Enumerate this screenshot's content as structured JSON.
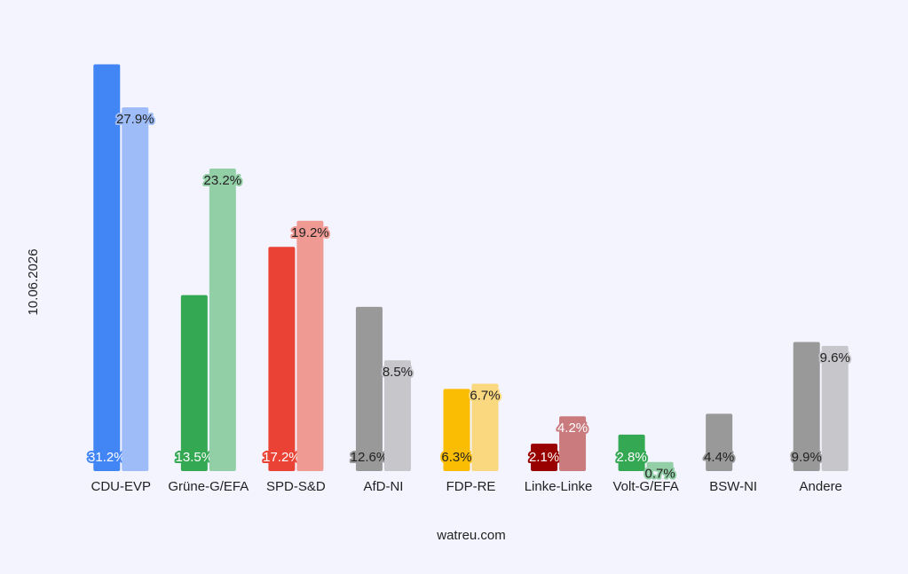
{
  "chart_data": {
    "type": "bar",
    "y_label": "10.06.2026",
    "x_label": "watreu.com",
    "categories": [
      "CDU-EVP",
      "Grüne-G/EFA",
      "SPD-S&D",
      "AfD-NI",
      "FDP-RE",
      "Linke-Linke",
      "Volt-G/EFA",
      "BSW-NI",
      "Andere"
    ],
    "series": [
      {
        "colors": [
          "#4285f4",
          "#34a853",
          "#ea4335",
          "#999999",
          "#fbbc04",
          "#990000",
          "#34a853",
          "#999999",
          "#999999"
        ],
        "values": [
          31.2,
          13.5,
          17.2,
          12.6,
          6.3,
          2.1,
          2.8,
          4.4,
          9.9
        ],
        "value_labels": [
          "31.2%",
          "13.5%",
          "17.2%",
          "12.6%",
          "6.3%",
          "2.1%",
          "2.8%",
          "4.4%",
          "9.9%"
        ]
      },
      {
        "colors": [
          "#9ebdf8",
          "#93cfa6",
          "#f09a94",
          "#c6c6cb",
          "#fad880",
          "#c97b7e",
          "#93cfa6",
          null,
          "#c6c6cb"
        ],
        "values": [
          27.9,
          23.2,
          19.2,
          8.5,
          6.7,
          4.2,
          0.7,
          null,
          9.6
        ],
        "value_labels": [
          "27.9%",
          "23.2%",
          "19.2%",
          "8.5%",
          "6.7%",
          "4.2%",
          "0.7%",
          null,
          "9.6%"
        ]
      }
    ],
    "ylim": [
      0,
      33
    ]
  }
}
